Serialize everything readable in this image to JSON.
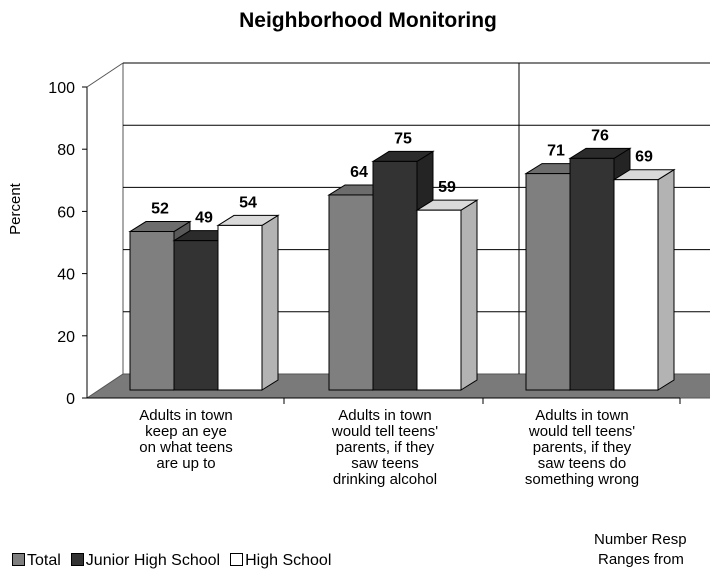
{
  "chart_data": {
    "type": "bar",
    "title": "Neighborhood Monitoring",
    "ylabel": "Percent",
    "ylim": [
      0,
      100
    ],
    "yticks": [
      0,
      20,
      40,
      60,
      80,
      100
    ],
    "categories": [
      [
        "Adults in town",
        "keep an eye",
        "on what teens",
        "are up to"
      ],
      [
        "Adults in town",
        "would tell teens'",
        "parents, if they",
        "saw teens",
        "drinking alcohol"
      ],
      [
        "Adults in town",
        "would tell teens'",
        "parents, if they",
        "saw teens do",
        "something wrong"
      ]
    ],
    "series": [
      {
        "name": "Total",
        "values": [
          52,
          64,
          71
        ],
        "color": "#7f7f7f"
      },
      {
        "name": "Junior High School",
        "values": [
          49,
          75,
          76
        ],
        "color": "#333333"
      },
      {
        "name": "High School",
        "values": [
          54,
          59,
          69
        ],
        "color": "#ffffff"
      }
    ],
    "grid": true,
    "legend_position": "bottom-left"
  },
  "footnote": [
    "Number Resp",
    "Ranges from "
  ]
}
